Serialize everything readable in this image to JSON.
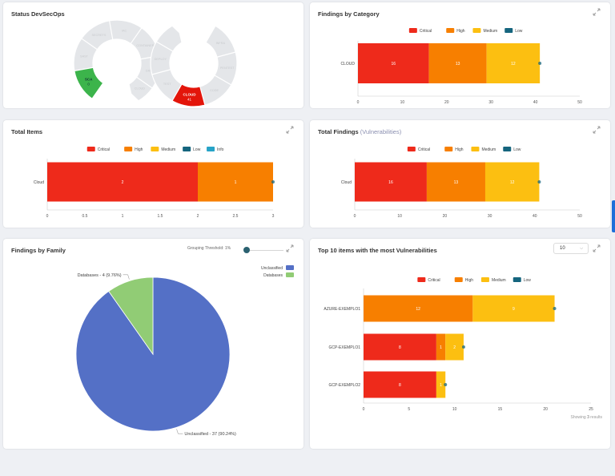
{
  "colors": {
    "critical": "#ee2a1b",
    "high": "#f77f00",
    "medium": "#fcbf11",
    "low": "#15657e",
    "info": "#27a3c7",
    "unclassified": "#5470c6",
    "databases": "#91cc75",
    "sca": "#3cb44b",
    "cloud": "#e3150a",
    "segment": "#e4e6e9"
  },
  "status_devsecops": {
    "title": "Status DevSecOps",
    "segments": [
      "SCA",
      "SAST",
      "SECRETS",
      "IAC",
      "CONTAINER",
      "DAST",
      "CLOUD",
      "INFRA",
      "PENTEST",
      "CODE",
      "BUILD",
      "TEST",
      "DEPLOY"
    ],
    "sca": {
      "label": "SCA",
      "value": "0"
    },
    "cloud": {
      "label": "CLOUD",
      "value": "41"
    }
  },
  "findings_by_category": {
    "title": "Findings by Category",
    "legend": [
      "Critical",
      "High",
      "Medium",
      "Low"
    ],
    "chart_data": {
      "type": "bar",
      "orientation": "horizontal",
      "stacked": true,
      "categories": [
        "CLOUD"
      ],
      "series": [
        {
          "name": "Critical",
          "values": [
            16
          ]
        },
        {
          "name": "High",
          "values": [
            13
          ]
        },
        {
          "name": "Medium",
          "values": [
            12
          ]
        },
        {
          "name": "Low",
          "values": [
            0
          ]
        }
      ],
      "xlim": [
        0,
        50
      ],
      "xticks": [
        0,
        10,
        20,
        30,
        40,
        50
      ]
    }
  },
  "total_items": {
    "title": "Total Items",
    "legend": [
      "Critical",
      "High",
      "Medium",
      "Low",
      "Info"
    ],
    "chart_data": {
      "type": "bar",
      "orientation": "horizontal",
      "stacked": true,
      "categories": [
        "Cloud"
      ],
      "series": [
        {
          "name": "Critical",
          "values": [
            2
          ]
        },
        {
          "name": "High",
          "values": [
            1
          ]
        },
        {
          "name": "Medium",
          "values": [
            0
          ]
        },
        {
          "name": "Low",
          "values": [
            0
          ]
        },
        {
          "name": "Info",
          "values": [
            0
          ]
        }
      ],
      "xlim": [
        0,
        3
      ],
      "xticks": [
        0,
        0.5,
        1,
        1.5,
        2,
        2.5,
        3
      ]
    }
  },
  "total_findings": {
    "title": "Total Findings",
    "subtitle": "(Vulnerabilities)",
    "legend": [
      "Critical",
      "High",
      "Medium",
      "Low"
    ],
    "chart_data": {
      "type": "bar",
      "orientation": "horizontal",
      "stacked": true,
      "categories": [
        "Cloud"
      ],
      "series": [
        {
          "name": "Critical",
          "values": [
            16
          ]
        },
        {
          "name": "High",
          "values": [
            13
          ]
        },
        {
          "name": "Medium",
          "values": [
            12
          ]
        },
        {
          "name": "Low",
          "values": [
            0
          ]
        }
      ],
      "xlim": [
        0,
        50
      ],
      "xticks": [
        0,
        10,
        20,
        30,
        40,
        50
      ]
    }
  },
  "findings_by_family": {
    "title": "Findings by Family",
    "threshold_label": "Grouping Threshold: 1%",
    "legend": [
      "Unclassified",
      "Databases"
    ],
    "chart_data": {
      "type": "pie",
      "labels": [
        "Unclassified",
        "Databases"
      ],
      "values": [
        37,
        4
      ],
      "slice_labels": [
        "Unclassified - 37 (90.24%)",
        "Databases - 4 (9.76%)"
      ]
    }
  },
  "top10": {
    "title": "Top 10 items with the most Vulnerabilities",
    "select_value": "10",
    "legend": [
      "Critical",
      "High",
      "Medium",
      "Low"
    ],
    "showing_prefix": "Showing",
    "showing_count": "3",
    "showing_suffix": "results",
    "chart_data": {
      "type": "bar",
      "orientation": "horizontal",
      "stacked": true,
      "categories": [
        "AZURE-EXEMPLO1",
        "GCP-EXEMPLO1",
        "GCP-EXEMPLO2"
      ],
      "series": [
        {
          "name": "Critical",
          "values": [
            0,
            8,
            8
          ]
        },
        {
          "name": "High",
          "values": [
            12,
            1,
            0
          ]
        },
        {
          "name": "Medium",
          "values": [
            9,
            2,
            1
          ]
        },
        {
          "name": "Low",
          "values": [
            0,
            0,
            0
          ]
        }
      ],
      "xlim": [
        0,
        25
      ],
      "xticks": [
        0,
        5,
        10,
        15,
        20,
        25
      ]
    }
  }
}
